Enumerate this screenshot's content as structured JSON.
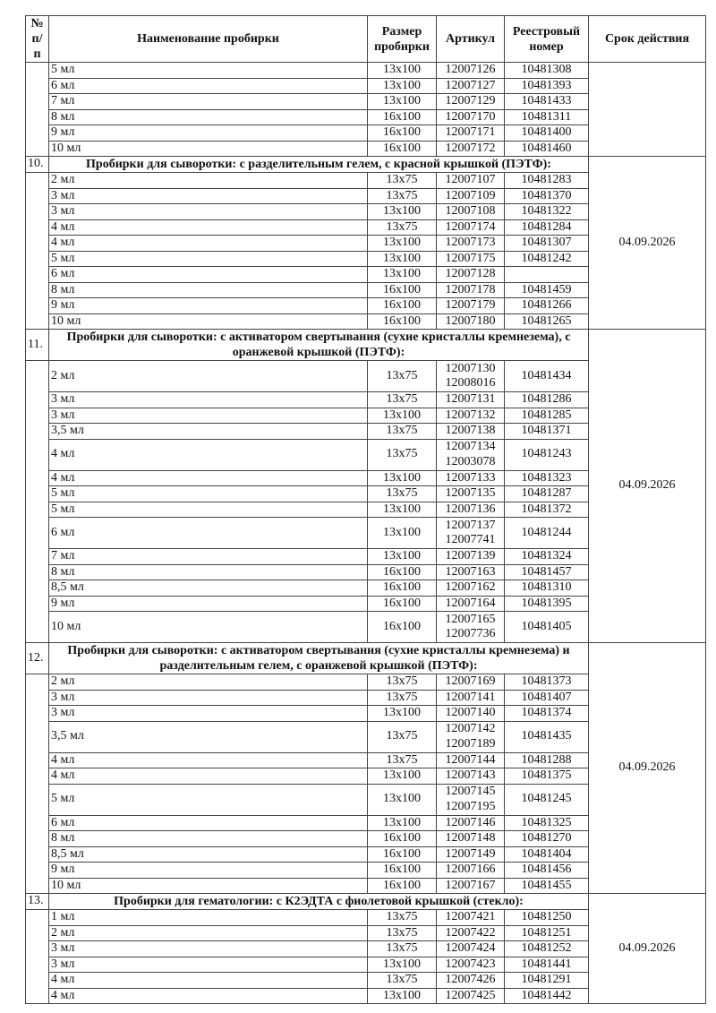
{
  "headers": {
    "num": "№ п/п",
    "name": "Наименование пробирки",
    "size": "Размер пробирки",
    "article": "Артикул",
    "registry": "Реестровый номер",
    "expiry": "Срок действия"
  },
  "groups": [
    {
      "number": "",
      "title": "",
      "expiry": "",
      "rows": [
        {
          "name": "5 мл",
          "size": "13x100",
          "articles": [
            "12007126"
          ],
          "registry": "10481308"
        },
        {
          "name": "6 мл",
          "size": "13x100",
          "articles": [
            "12007127"
          ],
          "registry": "10481393"
        },
        {
          "name": "7 мл",
          "size": "13x100",
          "articles": [
            "12007129"
          ],
          "registry": "10481433"
        },
        {
          "name": "8 мл",
          "size": "16x100",
          "articles": [
            "12007170"
          ],
          "registry": "10481311"
        },
        {
          "name": "9 мл",
          "size": "16x100",
          "articles": [
            "12007171"
          ],
          "registry": "10481400"
        },
        {
          "name": "10 мл",
          "size": "16x100",
          "articles": [
            "12007172"
          ],
          "registry": "10481460"
        }
      ]
    },
    {
      "number": "10.",
      "title": "Пробирки для сыворотки: с разделительным гелем, с красной крышкой (ПЭТФ):",
      "expiry": "04.09.2026",
      "rows": [
        {
          "name": "2 мл",
          "size": "13x75",
          "articles": [
            "12007107"
          ],
          "registry": "10481283"
        },
        {
          "name": "3 мл",
          "size": "13x75",
          "articles": [
            "12007109"
          ],
          "registry": "10481370"
        },
        {
          "name": "3 мл",
          "size": "13x100",
          "articles": [
            "12007108"
          ],
          "registry": "10481322"
        },
        {
          "name": "4 мл",
          "size": "13x75",
          "articles": [
            "12007174"
          ],
          "registry": "10481284"
        },
        {
          "name": "4 мл",
          "size": "13x100",
          "articles": [
            "12007173"
          ],
          "registry": "10481307"
        },
        {
          "name": "5 мл",
          "size": "13x100",
          "articles": [
            "12007175"
          ],
          "registry": "10481242"
        },
        {
          "name": "6 мл",
          "size": "13x100",
          "articles": [
            "12007128"
          ],
          "registry": ""
        },
        {
          "name": "8 мл",
          "size": "16x100",
          "articles": [
            "12007178"
          ],
          "registry": "10481459"
        },
        {
          "name": "9 мл",
          "size": "16x100",
          "articles": [
            "12007179"
          ],
          "registry": "10481266"
        },
        {
          "name": "10 мл",
          "size": "16x100",
          "articles": [
            "12007180"
          ],
          "registry": "10481265"
        }
      ]
    },
    {
      "number": "11.",
      "title": "Пробирки для сыворотки: с активатором свертывания (сухие кристаллы кремнезема), с оранжевой крышкой (ПЭТФ):",
      "expiry": "04.09.2026",
      "rows": [
        {
          "name": "2 мл",
          "size": "13x75",
          "articles": [
            "12007130",
            "12008016"
          ],
          "registry": "10481434"
        },
        {
          "name": "3 мл",
          "size": "13x75",
          "articles": [
            "12007131"
          ],
          "registry": "10481286"
        },
        {
          "name": "3 мл",
          "size": "13x100",
          "articles": [
            "12007132"
          ],
          "registry": "10481285"
        },
        {
          "name": "3,5 мл",
          "size": "13x75",
          "articles": [
            "12007138"
          ],
          "registry": "10481371"
        },
        {
          "name": "4 мл",
          "size": "13x75",
          "articles": [
            "12007134",
            "12003078"
          ],
          "registry": "10481243"
        },
        {
          "name": "4 мл",
          "size": "13x100",
          "articles": [
            "12007133"
          ],
          "registry": "10481323"
        },
        {
          "name": "5 мл",
          "size": "13x75",
          "articles": [
            "12007135"
          ],
          "registry": "10481287"
        },
        {
          "name": "5 мл",
          "size": "13x100",
          "articles": [
            "12007136"
          ],
          "registry": "10481372"
        },
        {
          "name": "6 мл",
          "size": "13x100",
          "articles": [
            "12007137",
            "12007741"
          ],
          "registry": "10481244"
        },
        {
          "name": "7 мл",
          "size": "13x100",
          "articles": [
            "12007139"
          ],
          "registry": "10481324"
        },
        {
          "name": "8 мл",
          "size": "16x100",
          "articles": [
            "12007163"
          ],
          "registry": "10481457"
        },
        {
          "name": "8,5 мл",
          "size": "16x100",
          "articles": [
            "12007162"
          ],
          "registry": "10481310"
        },
        {
          "name": "9 мл",
          "size": "16x100",
          "articles": [
            "12007164"
          ],
          "registry": "10481395"
        },
        {
          "name": "10 мл",
          "size": "16x100",
          "articles": [
            "12007165",
            "12007736"
          ],
          "registry": "10481405"
        }
      ]
    },
    {
      "number": "12.",
      "title": "Пробирки для сыворотки: с активатором свертывания (сухие кристаллы кремнезема) и разделительным гелем, с оранжевой крышкой (ПЭТФ):",
      "expiry": "04.09.2026",
      "rows": [
        {
          "name": "2 мл",
          "size": "13x75",
          "articles": [
            "12007169"
          ],
          "registry": "10481373"
        },
        {
          "name": "3 мл",
          "size": "13x75",
          "articles": [
            "12007141"
          ],
          "registry": "10481407"
        },
        {
          "name": "3 мл",
          "size": "13x100",
          "articles": [
            "12007140"
          ],
          "registry": "10481374"
        },
        {
          "name": "3,5 мл",
          "size": "13x75",
          "articles": [
            "12007142",
            "12007189"
          ],
          "registry": "10481435"
        },
        {
          "name": "4 мл",
          "size": "13x75",
          "articles": [
            "12007144"
          ],
          "registry": "10481288"
        },
        {
          "name": "4 мл",
          "size": "13x100",
          "articles": [
            "12007143"
          ],
          "registry": "10481375"
        },
        {
          "name": "5 мл",
          "size": "13x100",
          "articles": [
            "12007145",
            "12007195"
          ],
          "registry": "10481245"
        },
        {
          "name": "6 мл",
          "size": "13x100",
          "articles": [
            "12007146"
          ],
          "registry": "10481325"
        },
        {
          "name": "8 мл",
          "size": "16x100",
          "articles": [
            "12007148"
          ],
          "registry": "10481270"
        },
        {
          "name": "8,5 мл",
          "size": "16x100",
          "articles": [
            "12007149"
          ],
          "registry": "10481404"
        },
        {
          "name": "9 мл",
          "size": "16x100",
          "articles": [
            "12007166"
          ],
          "registry": "10481456"
        },
        {
          "name": "10 мл",
          "size": "16x100",
          "articles": [
            "12007167"
          ],
          "registry": "10481455"
        }
      ]
    },
    {
      "number": "13.",
      "title": "Пробирки для гематологии: с К2ЭДТА с фиолетовой крышкой (стекло):",
      "expiry": "04.09.2026",
      "rows": [
        {
          "name": "1 мл",
          "size": "13x75",
          "articles": [
            "12007421"
          ],
          "registry": "10481250"
        },
        {
          "name": "2 мл",
          "size": "13x75",
          "articles": [
            "12007422"
          ],
          "registry": "10481251"
        },
        {
          "name": "3 мл",
          "size": "13x75",
          "articles": [
            "12007424"
          ],
          "registry": "10481252"
        },
        {
          "name": "3 мл",
          "size": "13x100",
          "articles": [
            "12007423"
          ],
          "registry": "10481441"
        },
        {
          "name": "4 мл",
          "size": "13x75",
          "articles": [
            "12007426"
          ],
          "registry": "10481291"
        },
        {
          "name": "4 мл",
          "size": "13x100",
          "articles": [
            "12007425"
          ],
          "registry": "10481442"
        }
      ]
    }
  ]
}
